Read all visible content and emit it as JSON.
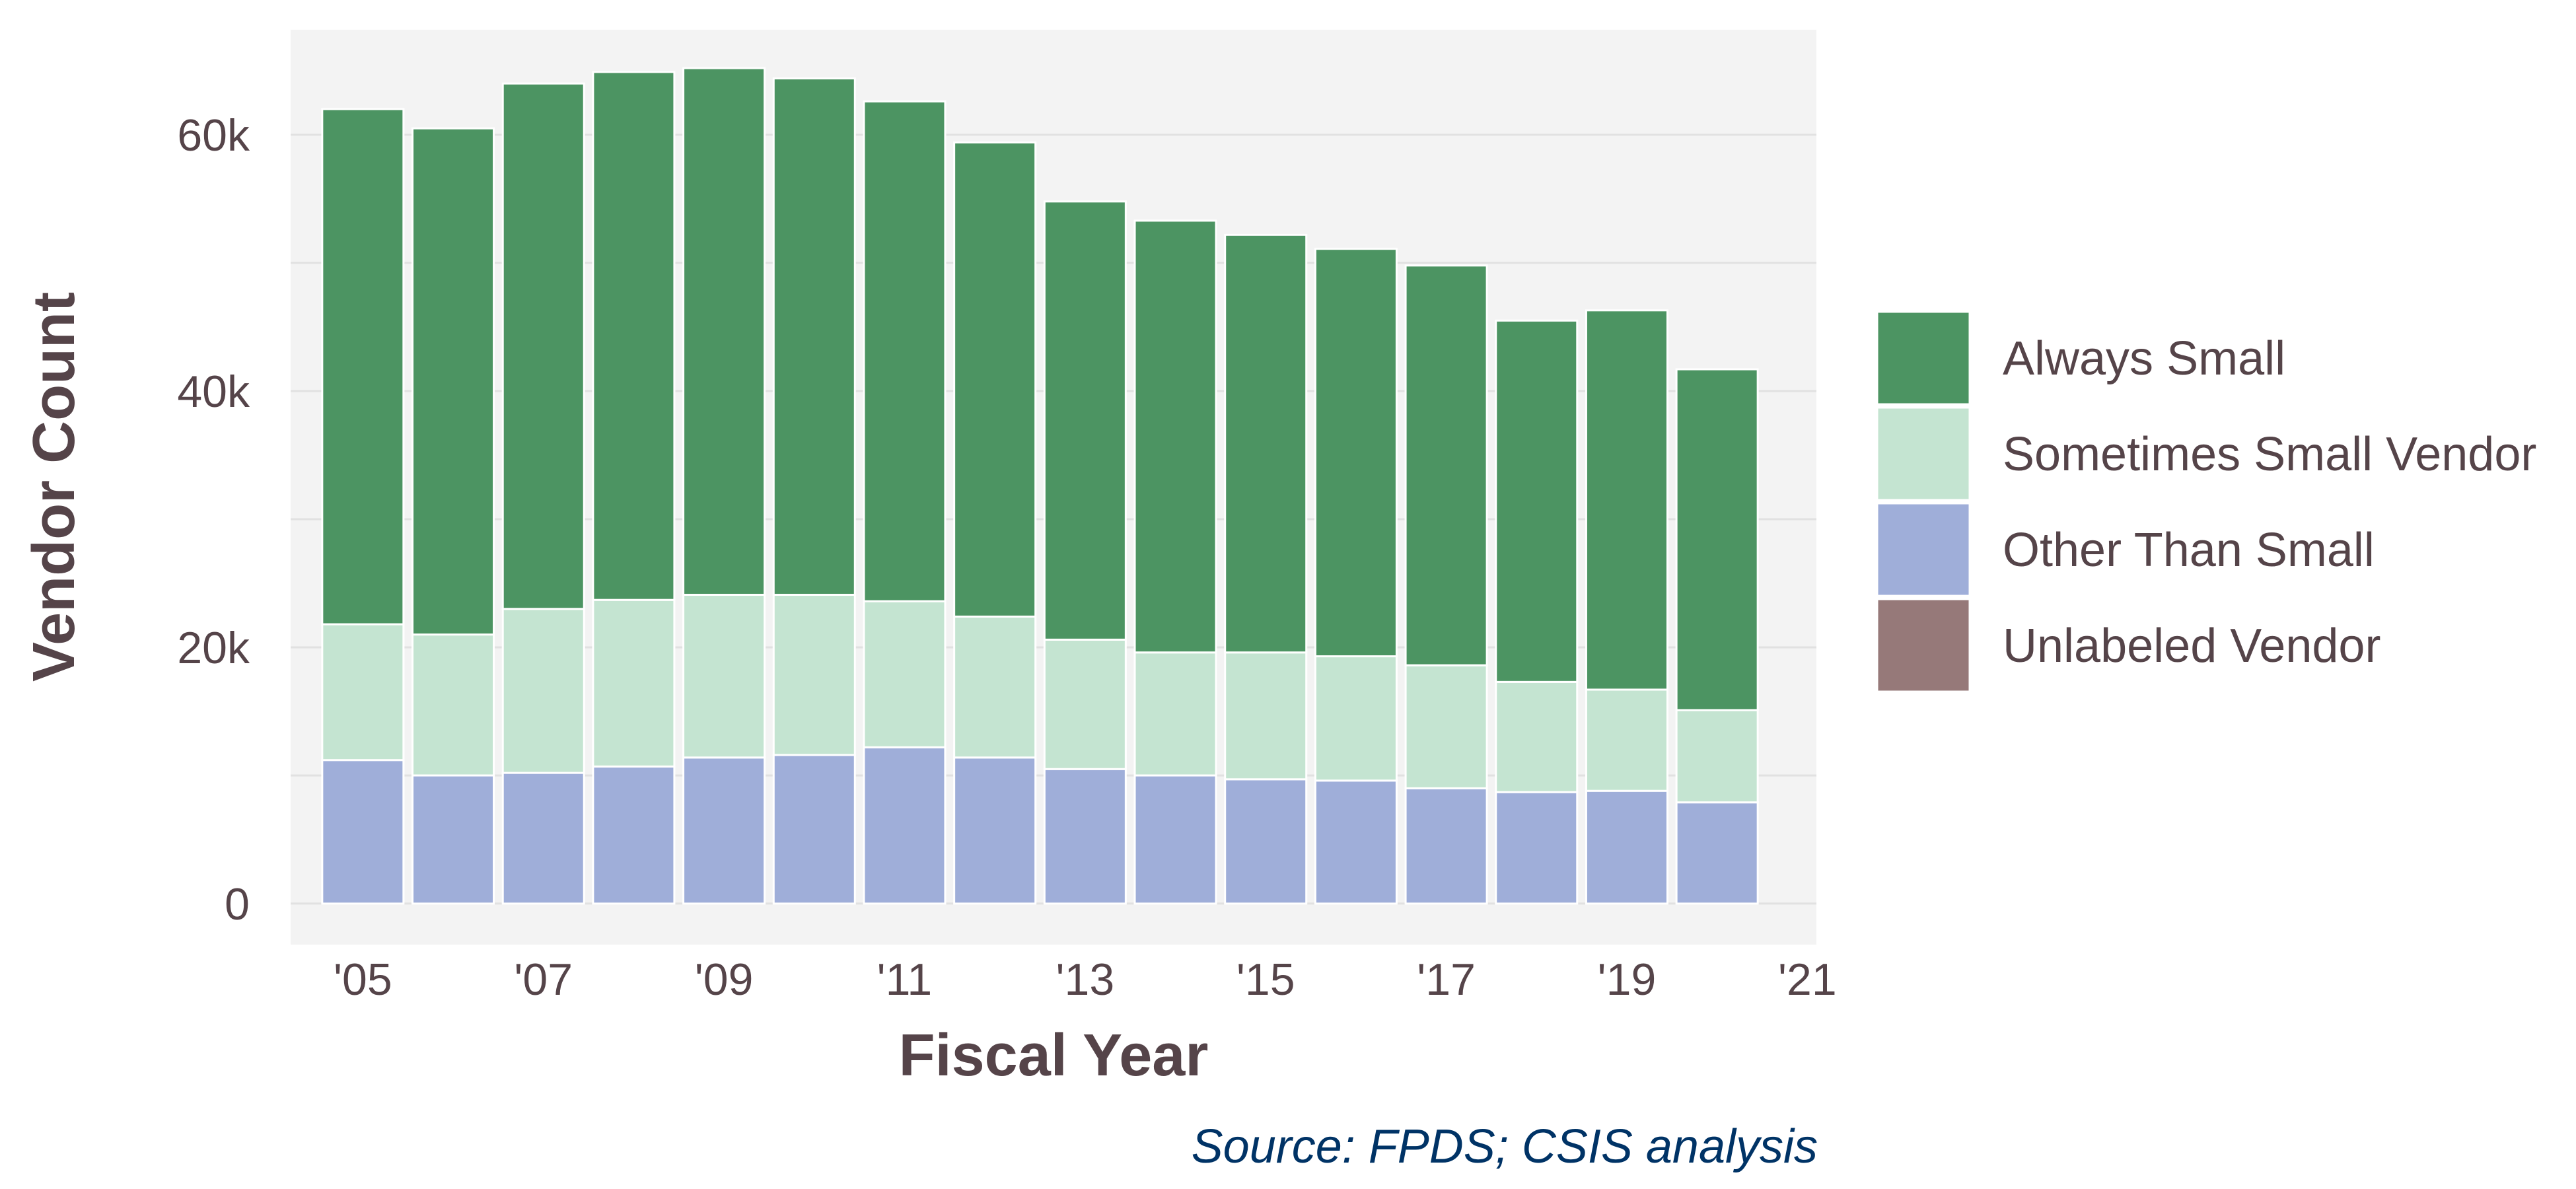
{
  "chart_data": {
    "type": "bar",
    "stacked": true,
    "xlabel": "Fiscal Year",
    "ylabel": "Vendor Count",
    "source": "Source: FPDS; CSIS analysis",
    "x": [
      2005,
      2006,
      2007,
      2008,
      2009,
      2010,
      2011,
      2012,
      2013,
      2014,
      2015,
      2016,
      2017,
      2018,
      2019,
      2020
    ],
    "x_ticks": [
      {
        "value": 2005,
        "label": "'05"
      },
      {
        "value": 2007,
        "label": "'07"
      },
      {
        "value": 2009,
        "label": "'09"
      },
      {
        "value": 2011,
        "label": "'11"
      },
      {
        "value": 2013,
        "label": "'13"
      },
      {
        "value": 2015,
        "label": "'15"
      },
      {
        "value": 2017,
        "label": "'17"
      },
      {
        "value": 2019,
        "label": "'19"
      },
      {
        "value": 2021,
        "label": "'21"
      }
    ],
    "xlim": [
      2004.2,
      2021.1
    ],
    "y_ticks": [
      {
        "value": 0,
        "label": "0"
      },
      {
        "value": 20000,
        "label": "20k"
      },
      {
        "value": 40000,
        "label": "40k"
      },
      {
        "value": 60000,
        "label": "60k"
      }
    ],
    "ylim": [
      -3200,
      68200
    ],
    "grid": true,
    "legend_position": "right",
    "series": [
      {
        "name": "Other Than Small",
        "color": "#9FAED9",
        "values": [
          11200,
          10000,
          10200,
          10700,
          11400,
          11600,
          12200,
          11400,
          10500,
          10000,
          9700,
          9600,
          9000,
          8700,
          8800,
          7900
        ]
      },
      {
        "name": "Sometimes Small Vendor",
        "color": "#C4E4D1",
        "values": [
          10600,
          11000,
          12800,
          13000,
          12700,
          12500,
          11400,
          11000,
          10100,
          9600,
          9900,
          9700,
          9600,
          8600,
          7900,
          7200
        ]
      },
      {
        "name": "Always Small",
        "color": "#4C9462",
        "values": [
          40200,
          39500,
          41000,
          41200,
          41100,
          40300,
          39000,
          37000,
          34200,
          33700,
          32600,
          31800,
          31200,
          28200,
          29600,
          26600
        ]
      },
      {
        "name": "Unlabeled Vendor",
        "color": "#967979",
        "values": [
          0,
          0,
          0,
          0,
          0,
          0,
          0,
          0,
          0,
          0,
          0,
          0,
          0,
          0,
          0,
          0
        ]
      }
    ],
    "legend_order": [
      "Always Small",
      "Sometimes Small Vendor",
      "Other Than Small",
      "Unlabeled Vendor"
    ],
    "panel_color": "#F3F3F3",
    "grid_color": "#E1E1E1"
  }
}
